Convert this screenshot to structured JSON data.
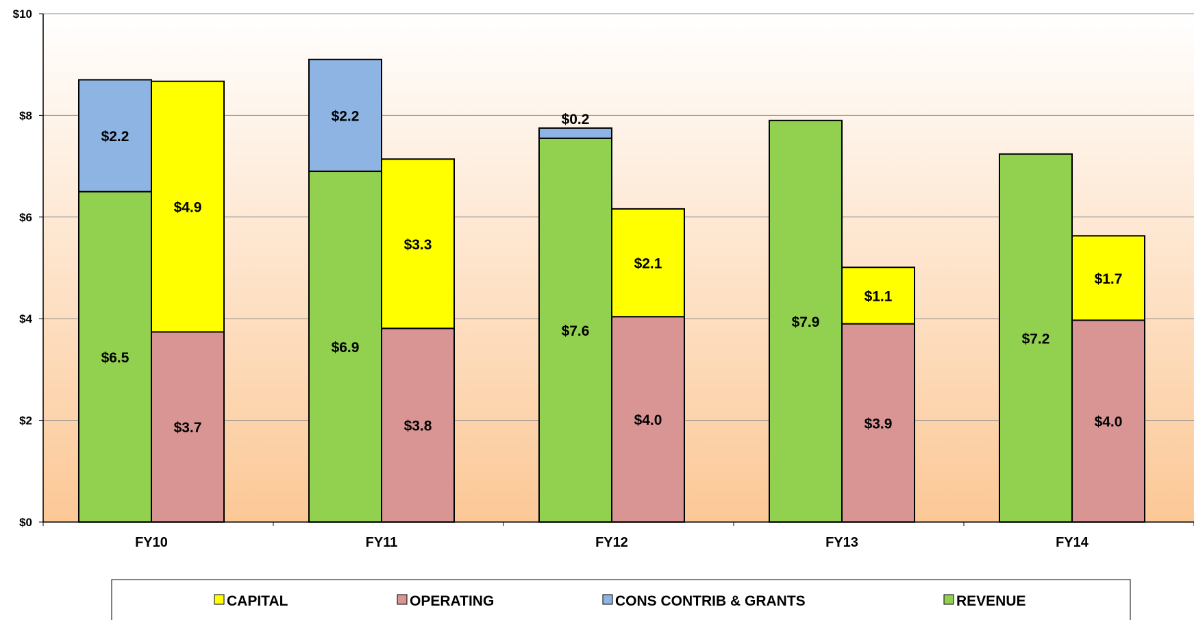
{
  "chart_data": {
    "type": "bar",
    "stacked": true,
    "categories": [
      "FY10",
      "FY11",
      "FY12",
      "FY13",
      "FY14"
    ],
    "ylim": [
      0,
      10
    ],
    "yticks": [
      0,
      2,
      4,
      6,
      8,
      10
    ],
    "ytick_labels": [
      "$0",
      "$2",
      "$4",
      "$6",
      "$8",
      "$10"
    ],
    "grid": true,
    "legend_position": "bottom",
    "stacks": [
      {
        "name": "sources",
        "series": [
          {
            "name": "REVENUE",
            "color": "#92D050",
            "values": [
              6.5,
              6.9,
              7.55,
              7.9,
              7.24
            ],
            "labels": [
              "$6.5",
              "$6.9",
              "$7.6",
              "$7.9",
              "$7.2"
            ]
          },
          {
            "name": "CONS CONTRIB & GRANTS",
            "color": "#8EB4E3",
            "values": [
              2.2,
              2.2,
              0.2,
              0,
              0
            ],
            "labels": [
              "$2.2",
              "$2.2",
              "$0.2",
              "",
              ""
            ]
          }
        ]
      },
      {
        "name": "uses",
        "series": [
          {
            "name": "OPERATING",
            "color": "#D99594",
            "values": [
              3.74,
              3.81,
              4.04,
              3.9,
              3.97
            ],
            "labels": [
              "$3.7",
              "$3.8",
              "$4.0",
              "$3.9",
              "$4.0"
            ]
          },
          {
            "name": "CAPITAL",
            "color": "#FFFF00",
            "values": [
              4.93,
              3.33,
              2.12,
              1.11,
              1.66
            ],
            "labels": [
              "$4.9",
              "$3.3",
              "$2.1",
              "$1.1",
              "$1.7"
            ]
          }
        ]
      }
    ],
    "legend": [
      {
        "name": "CAPITAL",
        "color": "#FFFF00"
      },
      {
        "name": "OPERATING",
        "color": "#D99594"
      },
      {
        "name": "CONS CONTRIB & GRANTS",
        "color": "#8EB4E3"
      },
      {
        "name": "REVENUE",
        "color": "#92D050"
      }
    ],
    "background_gradient": [
      "#FFFFFF",
      "#FCC896"
    ]
  }
}
